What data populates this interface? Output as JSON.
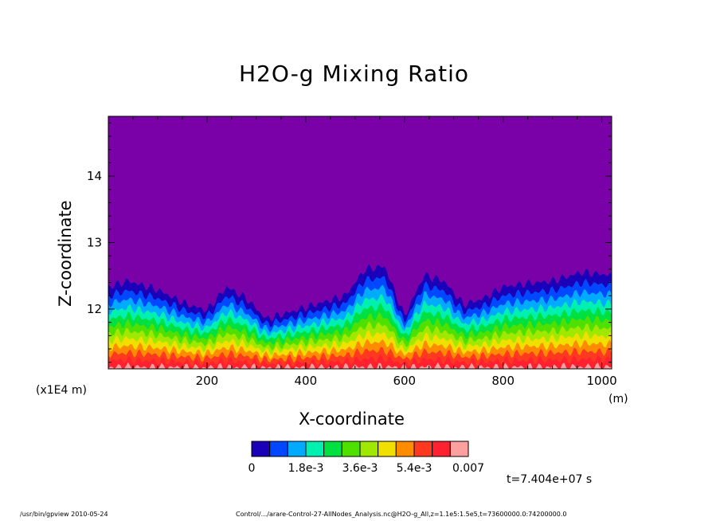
{
  "chart_data": {
    "type": "heatmap",
    "title": "H2O-g Mixing Ratio",
    "xlabel": "X-coordinate",
    "ylabel": "Z-coordinate",
    "x_units": "(m)",
    "y_units": "(x1E4 m)",
    "xlim": [
      0,
      1020
    ],
    "ylim": [
      11.1,
      14.9
    ],
    "x_ticks": [
      200,
      400,
      600,
      800,
      1000
    ],
    "y_ticks": [
      12,
      13,
      14
    ],
    "colorbar": {
      "colors": [
        "#7a00a8",
        "#1a00b8",
        "#0048ff",
        "#00aaff",
        "#00f0b0",
        "#00e040",
        "#50e000",
        "#a0e800",
        "#f0e000",
        "#ff8c00",
        "#ff3820",
        "#ff2030",
        "#ffa0a0"
      ],
      "labels": [
        "0",
        "1.8e-3",
        "3.6e-3",
        "5.4e-3",
        "0.007"
      ],
      "min": 0,
      "max": 0.007
    },
    "profile_top_z": {
      "x": [
        0,
        40,
        100,
        160,
        200,
        240,
        280,
        320,
        400,
        480,
        520,
        560,
        600,
        640,
        680,
        720,
        760,
        800,
        840,
        900,
        960,
        1020
      ],
      "z": [
        12.5,
        12.6,
        12.45,
        12.2,
        12.1,
        12.5,
        12.3,
        11.95,
        12.15,
        12.35,
        12.8,
        12.85,
        12.0,
        12.7,
        12.6,
        12.2,
        12.3,
        12.5,
        12.55,
        12.6,
        12.75,
        12.7
      ]
    },
    "time_label": "t=7.404e+07 s",
    "footer_left": "/usr/bin/gpview  2010-05-24",
    "footer_right": "Control/.../arare-Control-27-AllNodes_Analysis.nc@H2O-g_All,z=1.1e5:1.5e5,t=73600000.0:74200000.0"
  }
}
